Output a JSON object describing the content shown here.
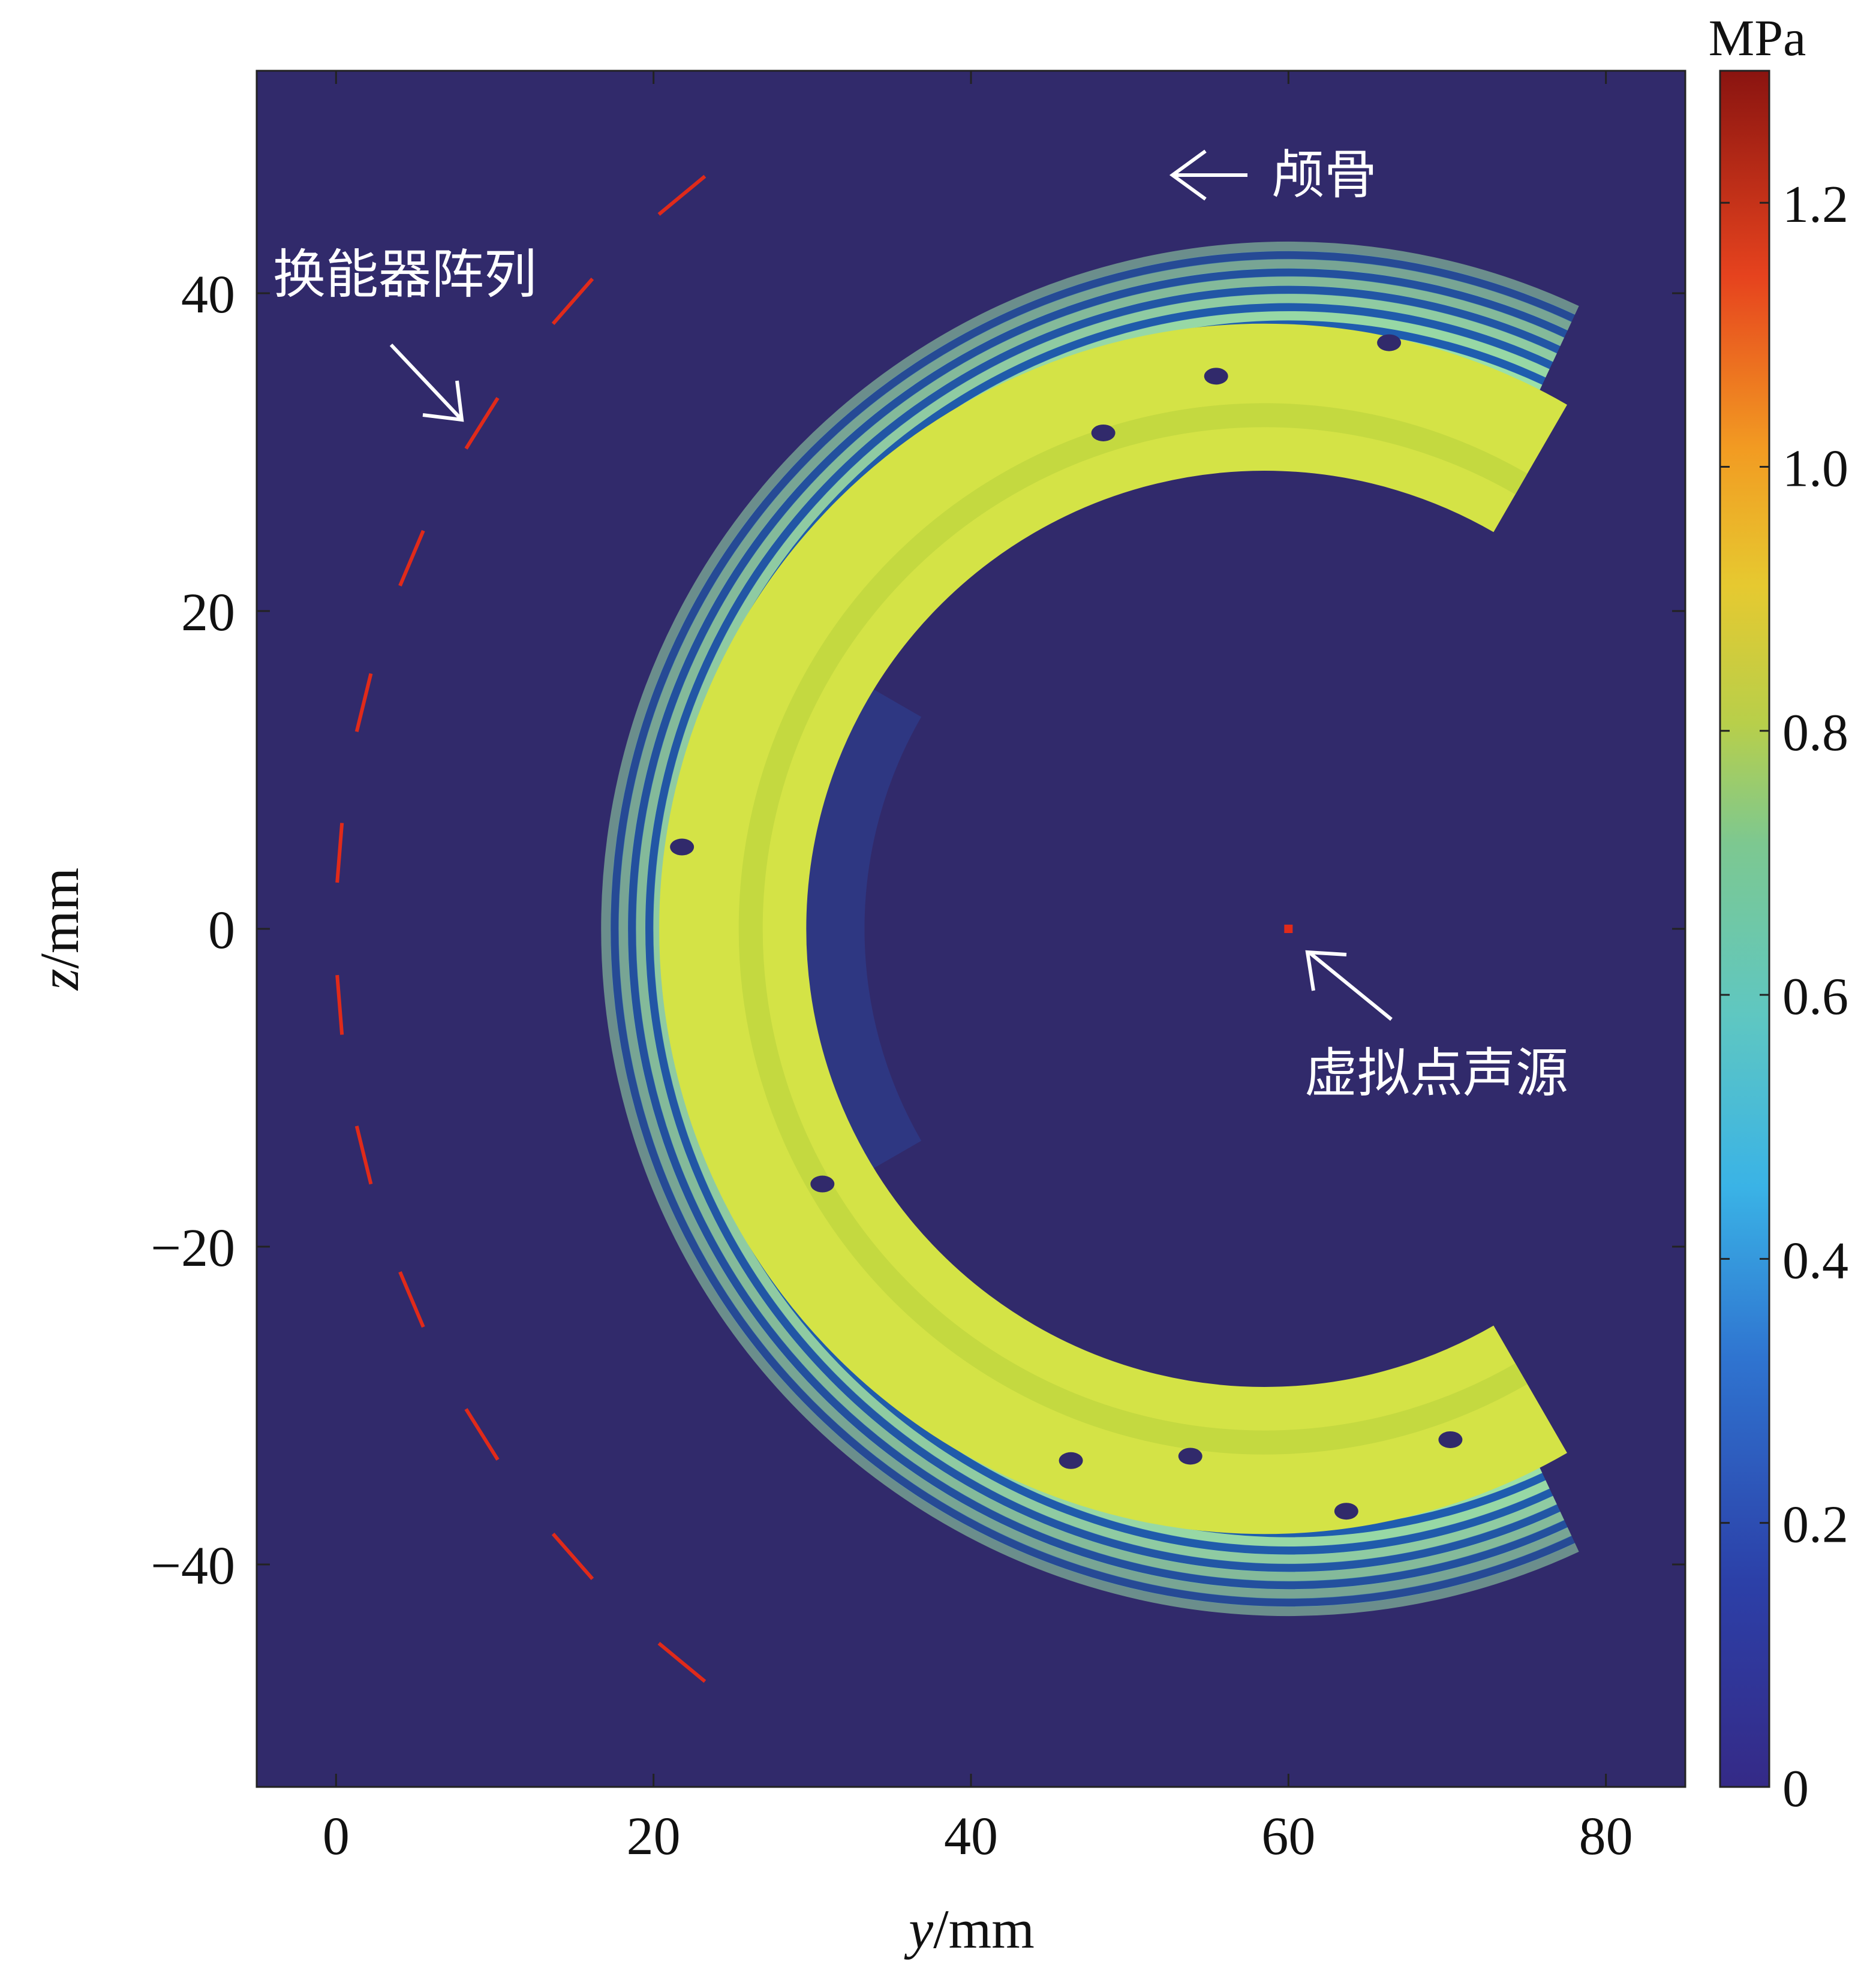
{
  "chart_data": {
    "type": "heatmap",
    "title": "",
    "xlabel_var": "y",
    "xlabel_unit": "/mm",
    "ylabel_var": "z",
    "ylabel_unit": "/mm",
    "xlim": [
      -5,
      85
    ],
    "ylim": [
      -54,
      54
    ],
    "xticks": [
      0,
      20,
      40,
      60,
      80
    ],
    "yticks": [
      -40,
      -20,
      0,
      20,
      40
    ],
    "xtick_labels": [
      "0",
      "20",
      "40",
      "60",
      "80"
    ],
    "ytick_labels": [
      "−40",
      "−20",
      "0",
      "20",
      "40"
    ],
    "colorbar": {
      "unit": "MPa",
      "range": [
        0,
        1.3
      ],
      "ticks": [
        0,
        0.2,
        0.4,
        0.6,
        0.8,
        1.0,
        1.2
      ],
      "tick_labels": [
        "0",
        "0.2",
        "0.4",
        "0.6",
        "0.8",
        "1.0",
        "1.2"
      ],
      "colormap": "jet"
    },
    "transducer_array": {
      "center": [
        60,
        0
      ],
      "radius": 60,
      "arc_deg": [
        125,
        235
      ],
      "elements": 12,
      "value_mpa": 1.15
    },
    "skull": {
      "center": [
        60,
        0
      ],
      "inner_radius": 30,
      "outer_radius": 37,
      "value_mpa": 0.8
    },
    "wavefield": {
      "center": [
        60,
        0
      ],
      "inner_radius": 31,
      "outer_radius": 43,
      "arc_deg": [
        -115,
        115
      ],
      "peak_mpa": 0.75
    },
    "virtual_source": {
      "y": 60,
      "z": 0,
      "value_mpa": 1.2
    },
    "annotations": [
      {
        "text": "颅骨",
        "target": "skull"
      },
      {
        "text": "换能器阵列",
        "target": "transducer array"
      },
      {
        "text": "虚拟点声源",
        "target": "virtual point source"
      }
    ],
    "grid": false,
    "background_color": "#312a6b",
    "colors": {
      "skull": "#d4e346",
      "skull_edge": "#b9d23c",
      "wave_bright": "#7ee8d0",
      "wave_dark": "#1f5fb0",
      "element": "#e02a1a",
      "annotation": "#ffffff"
    }
  }
}
